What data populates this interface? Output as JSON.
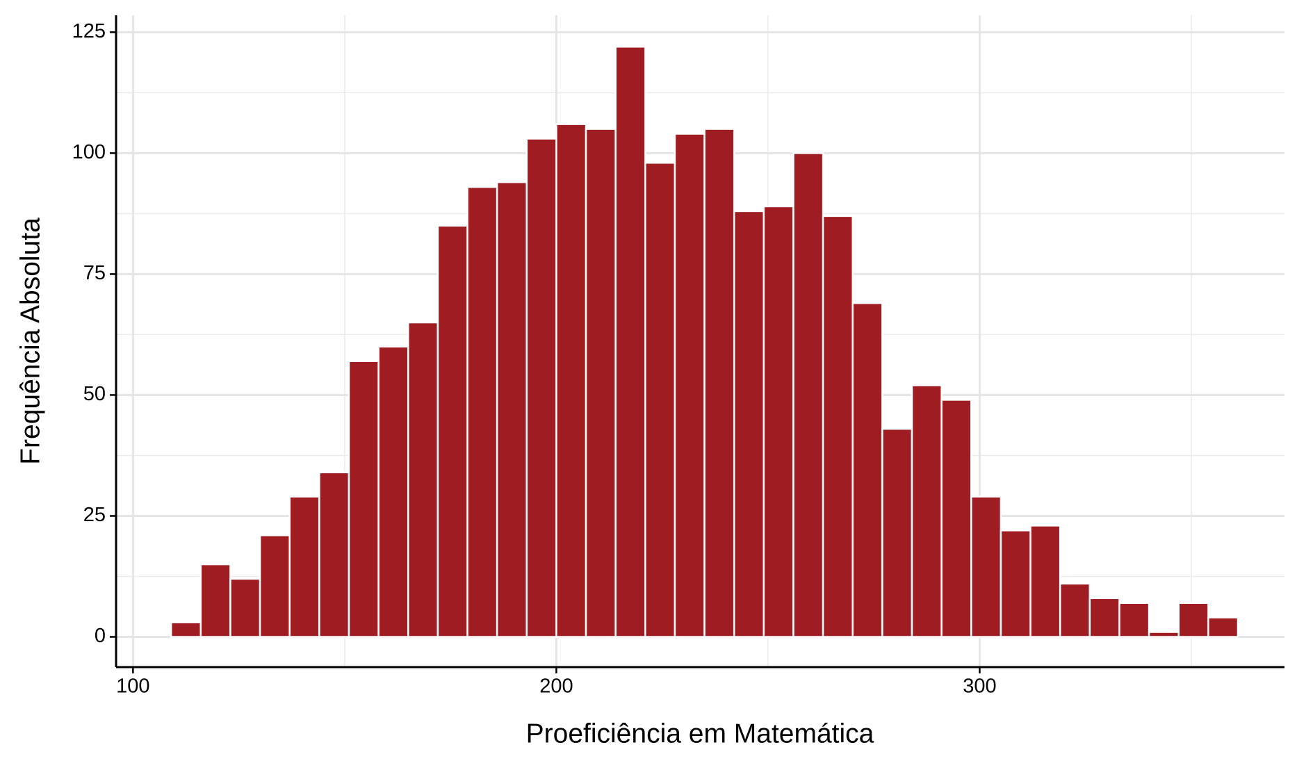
{
  "chart_data": {
    "type": "histogram",
    "x_label": "Proeficiência em Matemática",
    "y_label": "Frequência Absoluta",
    "bins": [
      109,
      116,
      123,
      130,
      137,
      144,
      151,
      158,
      165,
      172,
      179,
      186,
      193,
      200,
      207,
      214,
      221,
      228,
      235,
      242,
      249,
      256,
      263,
      270,
      277,
      284,
      291,
      298,
      305,
      312,
      319,
      326,
      333,
      340,
      347,
      354,
      361
    ],
    "values": [
      3,
      15,
      12,
      21,
      29,
      34,
      57,
      60,
      65,
      85,
      93,
      94,
      103,
      106,
      105,
      122,
      98,
      104,
      105,
      88,
      89,
      100,
      87,
      69,
      43,
      52,
      49,
      29,
      22,
      23,
      11,
      8,
      7,
      1,
      7,
      4
    ],
    "color": "#9e1c22",
    "xlim": [
      96,
      372
    ],
    "xticks": [
      100,
      200,
      300
    ],
    "ylim": [
      -6.25,
      128.5
    ],
    "yticks": [
      0,
      25,
      50,
      75,
      100,
      125
    ],
    "x_minor_grid": [
      150,
      250,
      350
    ],
    "y_minor_grid": [
      12.5,
      37.5,
      62.5,
      87.5,
      112.5
    ],
    "grid": true
  }
}
